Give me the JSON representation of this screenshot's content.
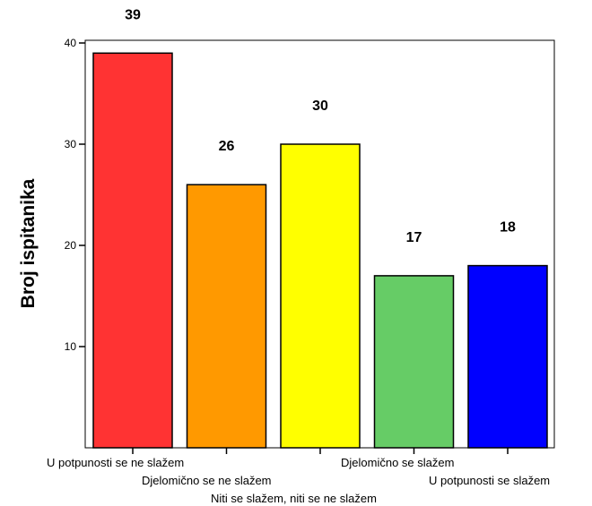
{
  "chart_data": {
    "type": "bar",
    "title": "",
    "xlabel": "",
    "ylabel": "Broj ispitanika",
    "ylim": [
      0,
      40
    ],
    "yticks": [
      10,
      20,
      30,
      40
    ],
    "grid": false,
    "legend": "none",
    "categories": [
      "U potpunosti se ne slažem",
      "Djelomično se ne slažem",
      "Niti se slažem, niti se ne slažem",
      "Djelomično se slažem",
      "U potpunosti se slažem"
    ],
    "values": [
      39,
      26,
      30,
      17,
      18
    ],
    "colors": [
      "#ff3333",
      "#ff9900",
      "#ffff00",
      "#66cc66",
      "#0000ff"
    ]
  }
}
